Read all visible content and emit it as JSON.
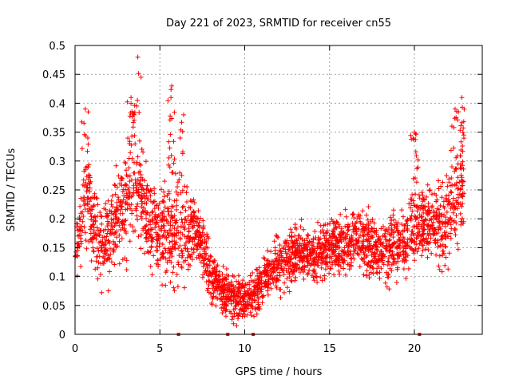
{
  "chart_data": {
    "type": "scatter",
    "title": "Day 221 of 2023, SRMTID for receiver cn55",
    "xlabel": "GPS time / hours",
    "ylabel": "SRMTID / TECUs",
    "xlim": [
      0,
      24
    ],
    "ylim": [
      0,
      0.5
    ],
    "xticks": [
      0,
      5,
      10,
      15,
      20
    ],
    "xtick_labels": [
      "0",
      "5",
      "10",
      "15",
      "20"
    ],
    "yticks": [
      0,
      0.05,
      0.1,
      0.15,
      0.2,
      0.25,
      0.3,
      0.35,
      0.4,
      0.45,
      0.5
    ],
    "ytick_labels": [
      "0",
      "0.05",
      "0.1",
      "0.15",
      "0.2",
      "0.25",
      "0.3",
      "0.35",
      "0.4",
      "0.45",
      "0.5"
    ],
    "grid": true,
    "marker": "+",
    "color": "#ff0000",
    "series": [
      {
        "name": "SRMTID",
        "profile": {
          "x": [
            0.0,
            0.5,
            0.7,
            1.0,
            1.5,
            2.0,
            2.5,
            3.0,
            3.5,
            3.8,
            4.0,
            4.5,
            5.0,
            5.5,
            6.0,
            6.5,
            7.0,
            7.5,
            8.0,
            8.5,
            9.0,
            9.5,
            10.0,
            10.5,
            11.0,
            11.5,
            12.0,
            12.5,
            13.0,
            13.5,
            14.0,
            14.5,
            15.0,
            15.5,
            16.0,
            16.5,
            17.0,
            17.5,
            18.0,
            18.5,
            19.0,
            19.5,
            20.0,
            20.5,
            21.0,
            21.5,
            22.0,
            22.5,
            22.9
          ],
          "y": [
            0.14,
            0.2,
            0.22,
            0.2,
            0.16,
            0.17,
            0.2,
            0.22,
            0.24,
            0.24,
            0.22,
            0.19,
            0.18,
            0.17,
            0.17,
            0.17,
            0.18,
            0.16,
            0.11,
            0.08,
            0.07,
            0.06,
            0.06,
            0.07,
            0.09,
            0.11,
            0.12,
            0.13,
            0.14,
            0.14,
            0.14,
            0.14,
            0.15,
            0.15,
            0.16,
            0.17,
            0.16,
            0.15,
            0.14,
            0.15,
            0.16,
            0.16,
            0.18,
            0.19,
            0.19,
            0.19,
            0.2,
            0.22,
            0.25
          ]
        },
        "spread": {
          "x": [
            0,
            3,
            6,
            8,
            10,
            12,
            15,
            18,
            21,
            23
          ],
          "y": [
            0.07,
            0.09,
            0.09,
            0.05,
            0.04,
            0.05,
            0.05,
            0.06,
            0.07,
            0.09
          ]
        },
        "peaks": [
          {
            "x": 0.6,
            "y": 0.39
          },
          {
            "x": 3.3,
            "y": 0.41
          },
          {
            "x": 3.7,
            "y": 0.48
          },
          {
            "x": 5.7,
            "y": 0.43
          },
          {
            "x": 6.4,
            "y": 0.38
          },
          {
            "x": 20.0,
            "y": 0.35
          },
          {
            "x": 22.4,
            "y": 0.39
          },
          {
            "x": 22.8,
            "y": 0.41
          }
        ],
        "zero_markers_x": [
          6.1,
          9.0,
          10.5,
          20.3
        ],
        "point_count": 2800,
        "x_range": [
          0,
          22.95
        ]
      }
    ]
  }
}
